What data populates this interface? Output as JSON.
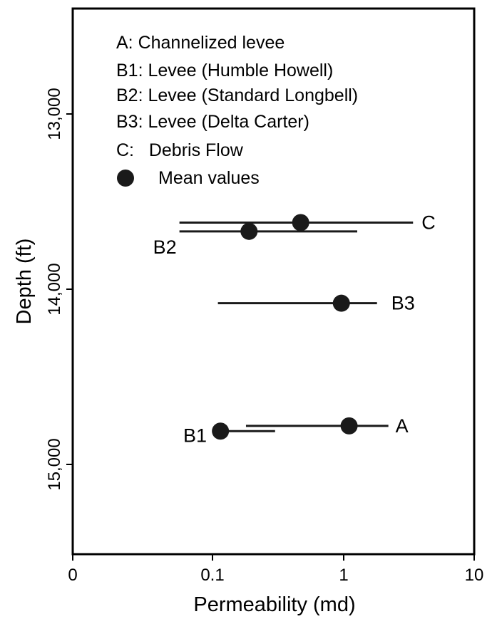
{
  "chart_data": {
    "type": "scatter",
    "title": "",
    "xlabel": "Permeability (md)",
    "ylabel": "Depth (ft)",
    "x_scale": "log",
    "xlim": [
      0.01,
      10
    ],
    "ylim": [
      15500,
      12500
    ],
    "x_tick_labels": [
      {
        "value": 0.01,
        "label": "0"
      },
      {
        "value": 0.1,
        "label": "0.1"
      },
      {
        "value": 1,
        "label": "1"
      },
      {
        "value": 10,
        "label": "10"
      }
    ],
    "y_ticks": [
      {
        "value": 13000,
        "label": "13,000"
      },
      {
        "value": 14000,
        "label": "14,000"
      },
      {
        "value": 15000,
        "label": "15,000"
      }
    ],
    "legend": {
      "placement": "top-left",
      "entries": [
        "A: Channelized levee",
        "B1: Levee (Humble Howell)",
        "B2: Levee (Standard Longbell)",
        "B3: Levee (Delta Carter)",
        "C:   Debris Flow"
      ],
      "marker_label": "Mean values"
    },
    "series": [
      {
        "name": "C",
        "mean": 0.47,
        "min": 0.058,
        "max": 3.4,
        "depth": 13620
      },
      {
        "name": "B2",
        "mean": 0.19,
        "min": 0.058,
        "max": 1.27,
        "depth": 13670
      },
      {
        "name": "B3",
        "mean": 0.96,
        "min": 0.11,
        "max": 1.8,
        "depth": 14080
      },
      {
        "name": "A",
        "mean": 1.1,
        "min": 0.18,
        "max": 2.2,
        "depth": 14780
      },
      {
        "name": "B1",
        "mean": 0.115,
        "min": 0.1,
        "max": 0.3,
        "depth": 14810
      }
    ],
    "grid": false
  }
}
